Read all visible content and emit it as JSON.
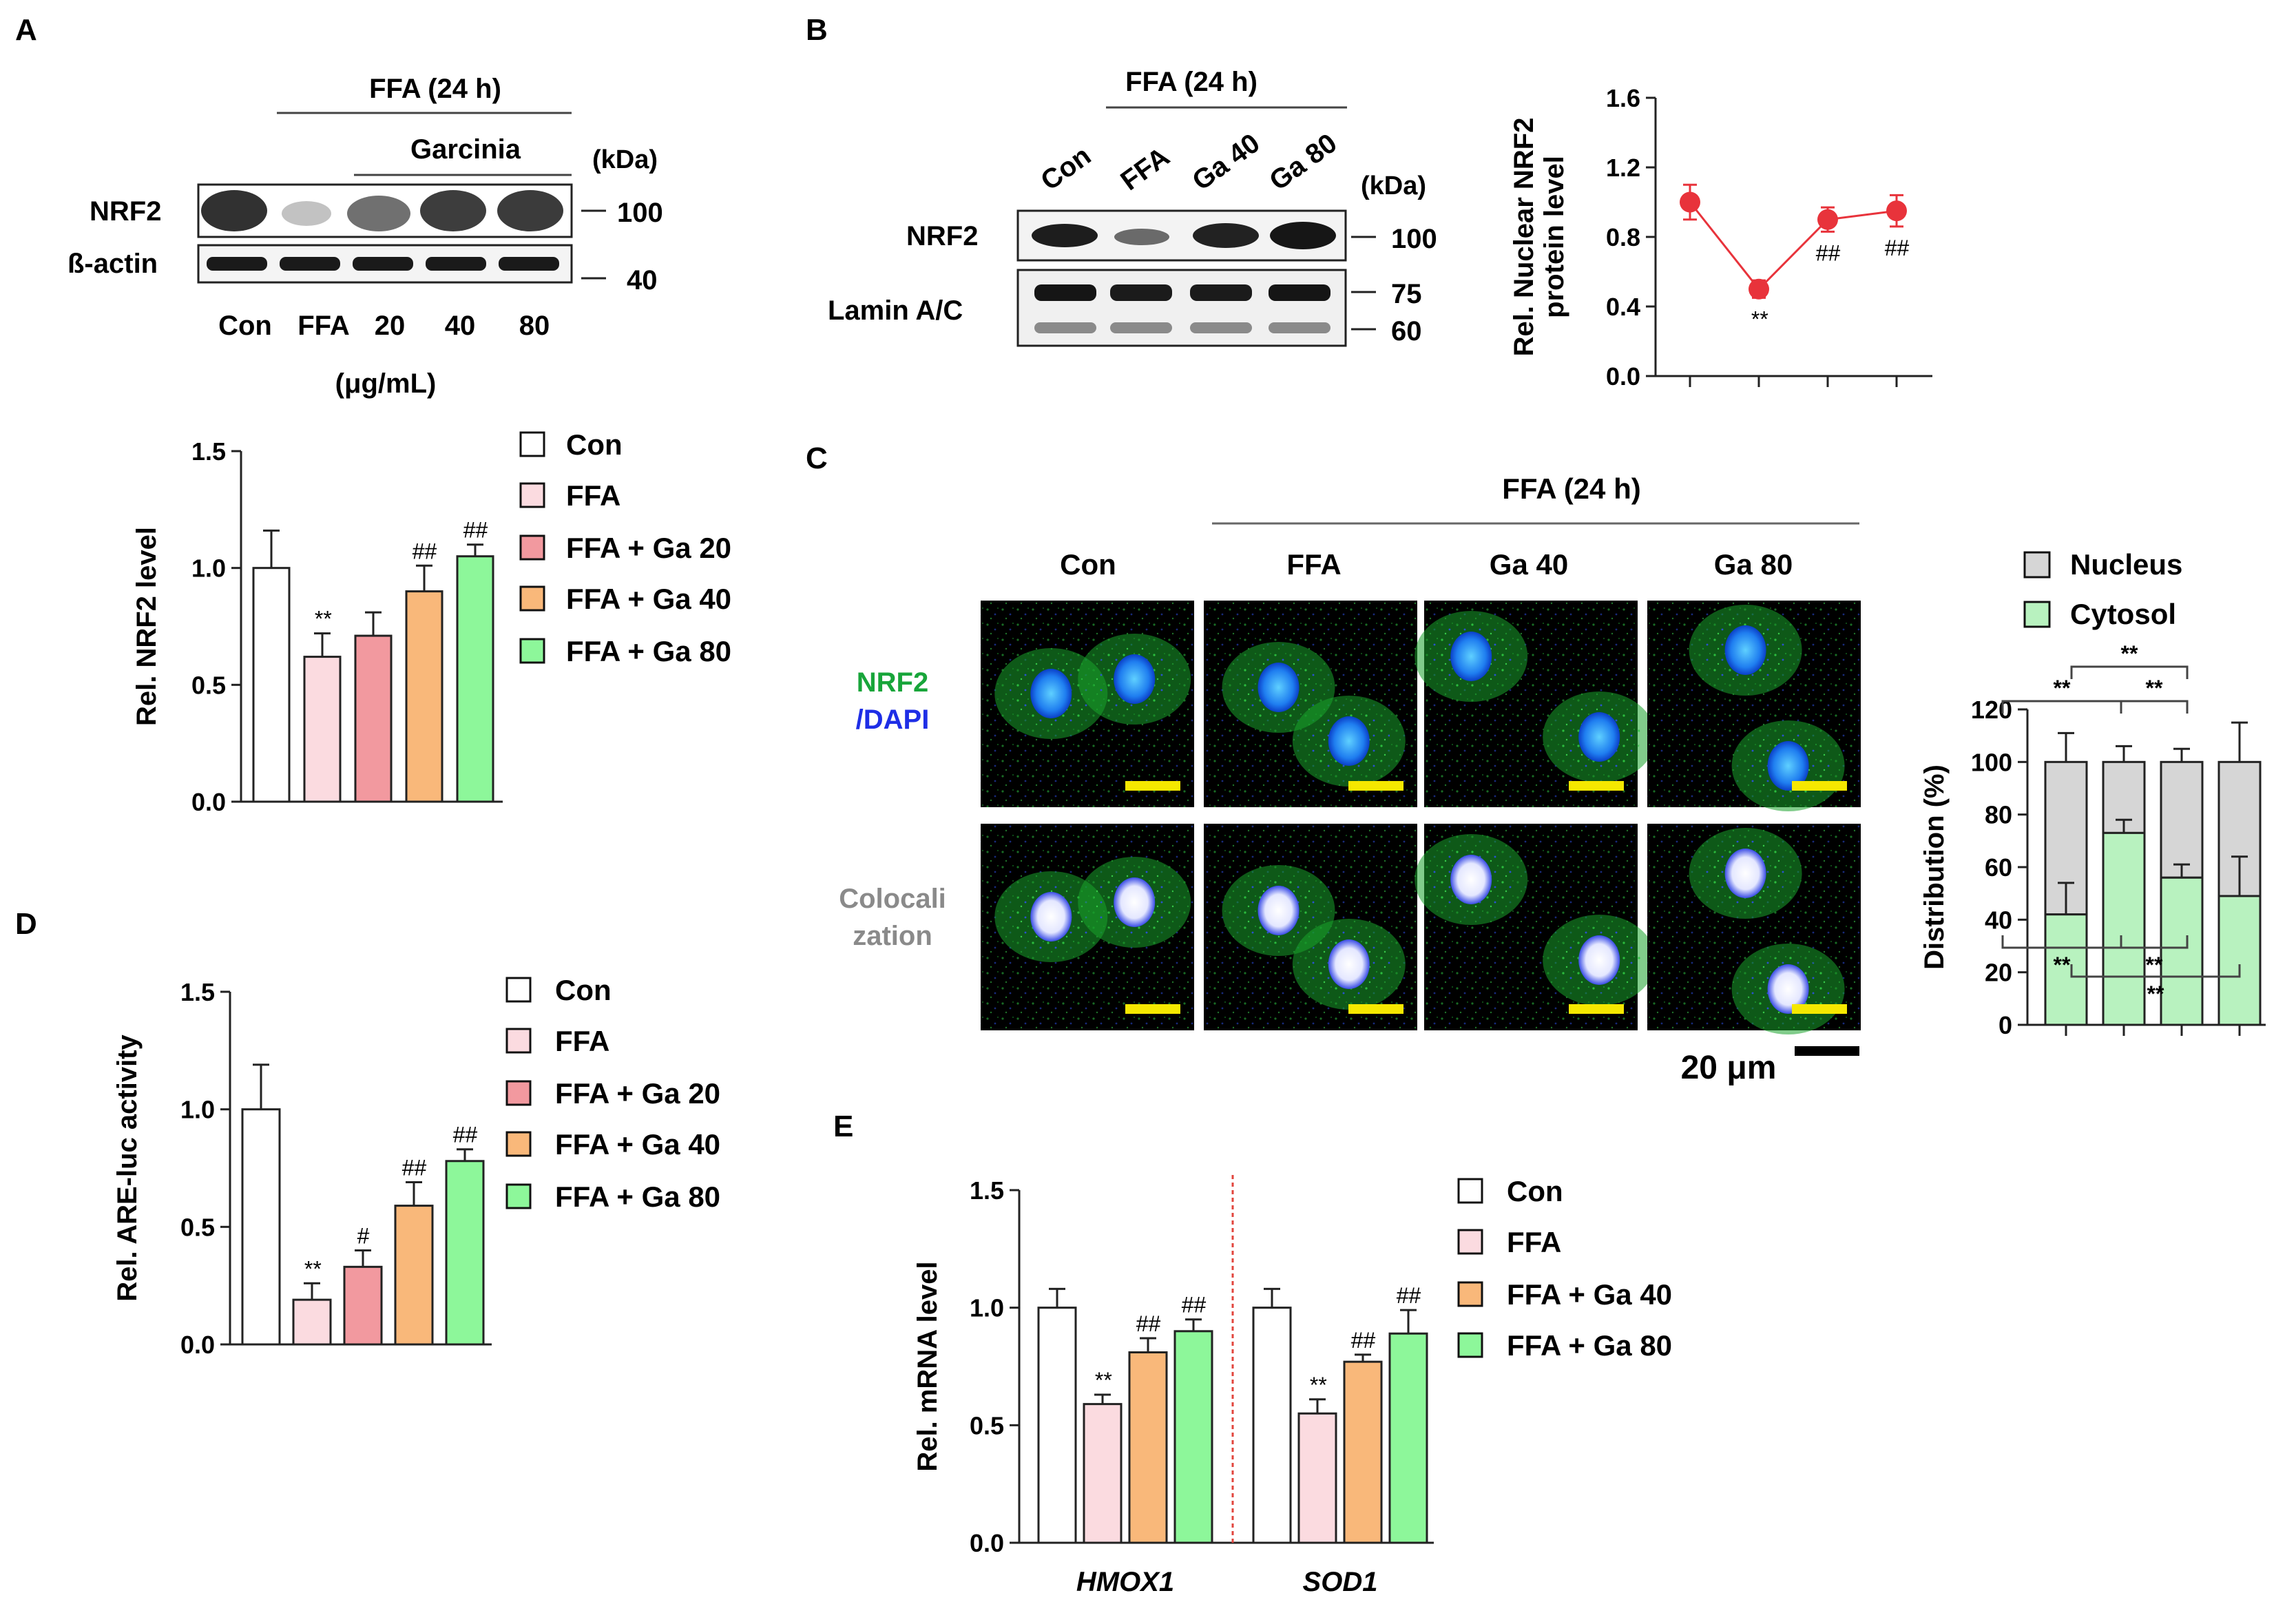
{
  "colors": {
    "con": "#ffffff",
    "ffa": "#fbdbe0",
    "ga20": "#f2999f",
    "ga40": "#f9b87a",
    "ga80": "#8df79a",
    "nuclear_line": "#e8333b",
    "nucleus_bar": "#d6d6d6",
    "cytosol_bar": "#b8f2bf",
    "nrf2_text": "#18a53a",
    "dapi_text": "#1e2ee6",
    "coloc_text": "#8a8a8a",
    "scale_bar": "#f5e800",
    "divider": "#e2453d"
  },
  "panels": {
    "A": {
      "letter": "A",
      "treatment_header": "FFA (24 h)",
      "sub_header": "Garcinia",
      "kda": "(kDa)",
      "bands": [
        {
          "label": "NRF2",
          "marker": "100"
        },
        {
          "label": "ß-actin",
          "marker": "40"
        }
      ],
      "lanes": [
        "Con",
        "FFA",
        "20",
        "40",
        "80"
      ],
      "unit": "(μg/mL)",
      "legend": [
        "Con",
        "FFA",
        "FFA + Ga 20",
        "FFA + Ga 40",
        "FFA + Ga 80"
      ]
    },
    "B": {
      "letter": "B",
      "treatment_header": "FFA (24 h)",
      "lanes": [
        "Con",
        "FFA",
        "Ga 40",
        "Ga 80"
      ],
      "kda": "(kDa)",
      "bands": [
        {
          "label": "NRF2",
          "markers": [
            "100"
          ]
        },
        {
          "label": "Lamin A/C",
          "markers": [
            "75",
            "60"
          ]
        }
      ]
    },
    "C": {
      "letter": "C",
      "treatment_header": "FFA (24 h)",
      "columns": [
        "Con",
        "FFA",
        "Ga 40",
        "Ga 80"
      ],
      "row_label_nrf2": "NRF2",
      "row_label_dapi": "/DAPI",
      "row_label_coloc_1": "Colocali",
      "row_label_coloc_2": "zation",
      "scale_label": "20 μm",
      "legend": [
        "Nucleus",
        "Cytosol"
      ]
    },
    "D": {
      "letter": "D",
      "legend": [
        "Con",
        "FFA",
        "FFA + Ga 20",
        "FFA + Ga 40",
        "FFA + Ga 80"
      ]
    },
    "E": {
      "letter": "E",
      "legend": [
        "Con",
        "FFA",
        "FFA + Ga 40",
        "FFA + Ga 80"
      ]
    }
  },
  "chart_data": [
    {
      "id": "A-bar",
      "type": "bar",
      "categories": [
        "Con",
        "FFA",
        "FFA + Ga 20",
        "FFA + Ga 40",
        "FFA + Ga 80"
      ],
      "values": [
        1.0,
        0.62,
        0.71,
        0.9,
        1.05
      ],
      "errors": [
        0.16,
        0.1,
        0.1,
        0.11,
        0.05
      ],
      "annotations": [
        "",
        "**",
        "",
        "##",
        "##"
      ],
      "ylabel": "Rel. NRF2 level",
      "ylim": [
        0,
        1.5
      ],
      "yticks": [
        "0.0",
        "0.5",
        "1.0",
        "1.5"
      ]
    },
    {
      "id": "B-line",
      "type": "line",
      "x": [
        1,
        2,
        3,
        4
      ],
      "values": [
        1.0,
        0.5,
        0.9,
        0.95
      ],
      "errors": [
        0.1,
        0.05,
        0.07,
        0.09
      ],
      "annotations": [
        "",
        "**",
        "##",
        "##"
      ],
      "ylabel_lines": [
        "Rel. Nuclear NRF2",
        "protein level"
      ],
      "ylim": [
        0,
        1.6
      ],
      "yticks": [
        "0.0",
        "0.4",
        "0.8",
        "1.2",
        "1.6"
      ]
    },
    {
      "id": "C-stacked",
      "type": "bar",
      "categories": [
        "Con",
        "FFA",
        "Ga 40",
        "Ga 80"
      ],
      "series": [
        {
          "name": "Cytosol",
          "values": [
            42,
            73,
            56,
            49
          ],
          "errors": [
            12,
            5,
            5,
            15
          ]
        },
        {
          "name": "Nucleus",
          "values": [
            58,
            27,
            44,
            51
          ],
          "errors": [
            11,
            6,
            5,
            15
          ]
        }
      ],
      "significance": [
        "**",
        "**",
        "**",
        "**",
        "**",
        "**"
      ],
      "ylabel": "Distribution  (%)",
      "ylim": [
        0,
        120
      ],
      "yticks": [
        "0",
        "20",
        "40",
        "60",
        "80",
        "100",
        "120"
      ]
    },
    {
      "id": "D-bar",
      "type": "bar",
      "categories": [
        "Con",
        "FFA",
        "FFA + Ga 20",
        "FFA + Ga 40",
        "FFA + Ga 80"
      ],
      "values": [
        1.0,
        0.19,
        0.33,
        0.59,
        0.78
      ],
      "errors": [
        0.19,
        0.07,
        0.07,
        0.1,
        0.05
      ],
      "annotations": [
        "",
        "**",
        "#",
        "##",
        "##"
      ],
      "ylabel": "Rel. ARE-luc activity",
      "ylim": [
        0,
        1.5
      ],
      "yticks": [
        "0.0",
        "0.5",
        "1.0",
        "1.5"
      ]
    },
    {
      "id": "E-bar",
      "type": "bar",
      "groups": [
        "HMOX1",
        "SOD1"
      ],
      "series": [
        {
          "name": "Con",
          "values": [
            1.0,
            1.0
          ],
          "errors": [
            0.08,
            0.08
          ]
        },
        {
          "name": "FFA",
          "values": [
            0.59,
            0.55
          ],
          "errors": [
            0.04,
            0.06
          ]
        },
        {
          "name": "FFA + Ga 40",
          "values": [
            0.81,
            0.77
          ],
          "errors": [
            0.06,
            0.03
          ]
        },
        {
          "name": "FFA + Ga 80",
          "values": [
            0.9,
            0.89
          ],
          "errors": [
            0.05,
            0.1
          ]
        }
      ],
      "annotations": [
        [
          "",
          "**",
          "##",
          "##"
        ],
        [
          "",
          "**",
          "##",
          "##"
        ]
      ],
      "ylabel": "Rel. mRNA level",
      "ylim": [
        0,
        1.5
      ],
      "yticks": [
        "0.0",
        "0.5",
        "1.0",
        "1.5"
      ]
    }
  ]
}
